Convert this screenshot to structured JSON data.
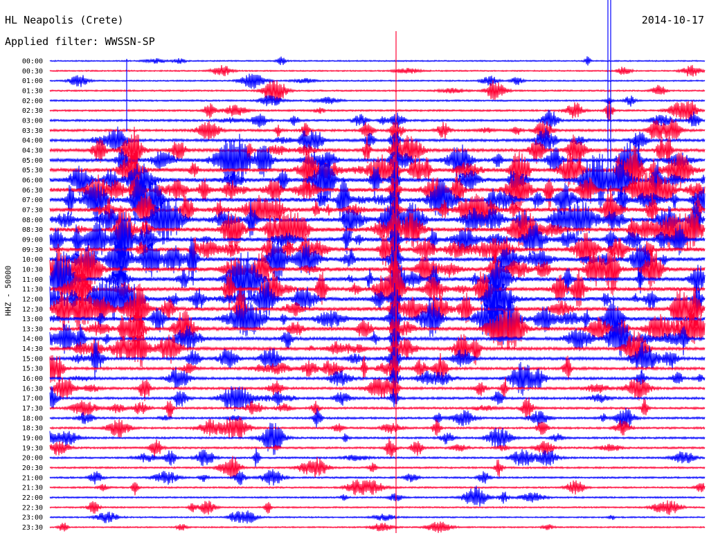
{
  "header": {
    "station": "HL Neapolis (Crete)",
    "filter": "Applied filter: WWSSN-SP",
    "date": "2014-10-17",
    "channel": "HHZ - 50000"
  },
  "chart_data": {
    "type": "line",
    "title": "HL Neapolis (Crete)",
    "subtitle": "Applied filter: WWSSN-SP",
    "date": "2014-10-17",
    "ylabel": "HHZ - 50000",
    "row_labels": [
      "00:00",
      "00:30",
      "01:00",
      "01:30",
      "02:00",
      "02:30",
      "03:00",
      "03:30",
      "04:00",
      "04:30",
      "05:00",
      "05:30",
      "06:00",
      "06:30",
      "07:00",
      "07:30",
      "08:00",
      "08:30",
      "09:00",
      "09:30",
      "10:00",
      "10:30",
      "11:00",
      "11:30",
      "12:00",
      "12:30",
      "13:00",
      "13:30",
      "14:00",
      "14:30",
      "15:00",
      "15:30",
      "16:00",
      "16:30",
      "17:00",
      "17:30",
      "18:00",
      "18:30",
      "19:00",
      "19:30",
      "20:00",
      "20:30",
      "21:00",
      "21:30",
      "22:00",
      "22:30",
      "23:00",
      "23:30"
    ],
    "trace_colors": [
      "#0000ff",
      "#ff0033"
    ],
    "trace_activity": [
      0.05,
      0.06,
      0.08,
      0.12,
      0.15,
      0.2,
      0.28,
      0.35,
      0.45,
      0.55,
      0.65,
      0.75,
      0.8,
      0.85,
      0.85,
      0.85,
      0.85,
      0.85,
      0.85,
      0.8,
      0.8,
      0.8,
      0.8,
      0.8,
      0.8,
      0.75,
      0.75,
      0.7,
      0.6,
      0.55,
      0.5,
      0.45,
      0.4,
      0.38,
      0.35,
      0.3,
      0.28,
      0.25,
      0.25,
      0.25,
      0.22,
      0.2,
      0.18,
      0.15,
      0.15,
      0.12,
      0.1,
      0.08
    ],
    "grid": false,
    "legend": "none"
  }
}
